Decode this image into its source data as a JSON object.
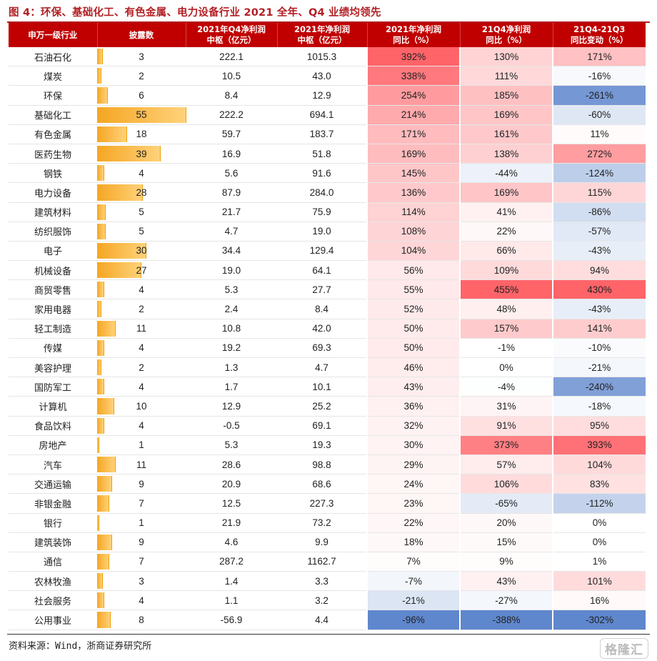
{
  "title": "图 4：环保、基础化工、有色金属、电力设备行业 2021 全年、Q4 业绩均领先",
  "source": "资料来源：Wind，浙商证券研究所",
  "logo": "格隆汇",
  "colors": {
    "header": "#c00000",
    "bar": "#f5a623",
    "positive": "#e8525a",
    "negative": "#4f7fc6"
  },
  "chart_data": {
    "type": "table",
    "columns": [
      "申万一级行业",
      "披露数",
      "2021年Q4净利润中枢（亿元）",
      "2021年净利润中枢（亿元）",
      "2021年净利润同比（%）",
      "21Q4净利润同比（%）",
      "21Q4-21Q3同比变动（%）"
    ],
    "headers": [
      [
        "申万一级行业",
        ""
      ],
      [
        "披露数",
        ""
      ],
      [
        "2021年Q4净利润",
        "中枢（亿元）"
      ],
      [
        "2021年净利润",
        "中枢（亿元）"
      ],
      [
        "2021年净利润",
        "同比（%）"
      ],
      [
        "21Q4净利润",
        "同比（%）"
      ],
      [
        "21Q4-21Q3",
        "同比变动（%）"
      ]
    ],
    "rows": [
      [
        "石油石化",
        3,
        "222.1",
        "1015.3",
        392,
        130,
        171
      ],
      [
        "煤炭",
        2,
        "10.5",
        "43.0",
        338,
        111,
        -16
      ],
      [
        "环保",
        6,
        "8.4",
        "12.9",
        254,
        185,
        -261
      ],
      [
        "基础化工",
        55,
        "222.2",
        "694.1",
        214,
        169,
        -60
      ],
      [
        "有色金属",
        18,
        "59.7",
        "183.7",
        171,
        161,
        11
      ],
      [
        "医药生物",
        39,
        "16.9",
        "51.8",
        169,
        138,
        272
      ],
      [
        "钢铁",
        4,
        "5.6",
        "91.6",
        145,
        -44,
        -124
      ],
      [
        "电力设备",
        28,
        "87.9",
        "284.0",
        136,
        169,
        115
      ],
      [
        "建筑材料",
        5,
        "21.7",
        "75.9",
        114,
        41,
        -86
      ],
      [
        "纺织服饰",
        5,
        "4.7",
        "19.0",
        108,
        22,
        -57
      ],
      [
        "电子",
        30,
        "34.4",
        "129.4",
        104,
        66,
        -43
      ],
      [
        "机械设备",
        27,
        "19.0",
        "64.1",
        56,
        109,
        94
      ],
      [
        "商贸零售",
        4,
        "5.3",
        "27.7",
        55,
        455,
        430
      ],
      [
        "家用电器",
        2,
        "2.4",
        "8.4",
        52,
        48,
        -43
      ],
      [
        "轻工制造",
        11,
        "10.8",
        "42.0",
        50,
        157,
        141
      ],
      [
        "传媒",
        4,
        "19.2",
        "69.3",
        50,
        -1,
        -10
      ],
      [
        "美容护理",
        2,
        "1.3",
        "4.7",
        46,
        0,
        -21
      ],
      [
        "国防军工",
        4,
        "1.7",
        "10.1",
        43,
        -4,
        -240
      ],
      [
        "计算机",
        10,
        "12.9",
        "25.2",
        36,
        31,
        -18
      ],
      [
        "食品饮料",
        4,
        "-0.5",
        "69.1",
        32,
        91,
        95
      ],
      [
        "房地产",
        1,
        "5.3",
        "19.3",
        30,
        373,
        393
      ],
      [
        "汽车",
        11,
        "28.6",
        "98.8",
        29,
        57,
        104
      ],
      [
        "交通运输",
        9,
        "20.9",
        "68.6",
        24,
        106,
        83
      ],
      [
        "非银金融",
        7,
        "12.5",
        "227.3",
        23,
        -65,
        -112
      ],
      [
        "银行",
        1,
        "21.9",
        "73.2",
        22,
        20,
        0
      ],
      [
        "建筑装饰",
        9,
        "4.6",
        "9.9",
        18,
        15,
        0
      ],
      [
        "通信",
        7,
        "287.2",
        "1162.7",
        7,
        9,
        1
      ],
      [
        "农林牧渔",
        3,
        "1.4",
        "3.3",
        -7,
        43,
        101
      ],
      [
        "社会服务",
        4,
        "1.1",
        "3.2",
        -21,
        -27,
        16
      ],
      [
        "公用事业",
        8,
        "-56.9",
        "4.4",
        -96,
        -388,
        -302
      ]
    ]
  }
}
